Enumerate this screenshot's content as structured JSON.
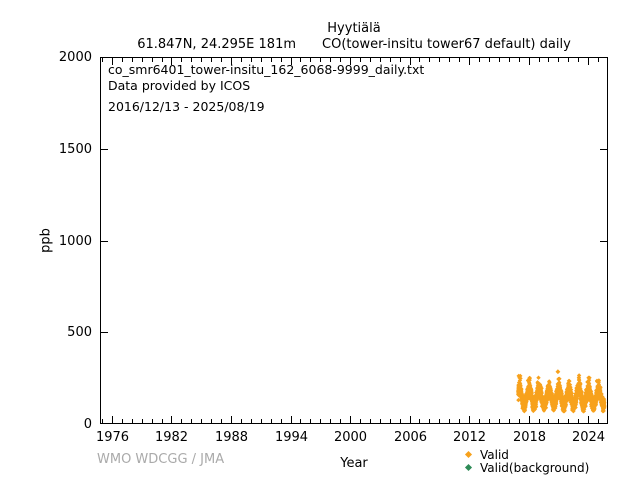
{
  "title": {
    "station": "Hyytiälä",
    "coordinates": "61.847N, 24.295E 181m",
    "parameter": "CO(tower-insitu tower67 default) daily"
  },
  "plot_annotation": {
    "file_name": "co_smr6401_tower-insitu_162_6068-9999_daily.txt",
    "provider": "Data provided by ICOS",
    "date_range": "2016/12/13 - 2025/08/19"
  },
  "watermark": "WMO WDCGG / JMA",
  "legend": {
    "items": [
      {
        "label": "Valid",
        "color": "#F7A11C",
        "marker": "diamond"
      },
      {
        "label": "Valid(background)",
        "color": "#2E8B57",
        "marker": "diamond"
      }
    ]
  },
  "chart_data": {
    "type": "scatter",
    "title": "Hyytiälä",
    "subtitle": "61.847N, 24.295E 181m    CO(tower-insitu tower67 default) daily",
    "xlabel": "Year",
    "ylabel": "ppb",
    "xlim": [
      1974.8,
      2026.0
    ],
    "ylim": [
      0,
      2000
    ],
    "xticks": [
      1976,
      1982,
      1988,
      1994,
      2000,
      2006,
      2012,
      2018,
      2024
    ],
    "xtick_minor_interval_years": 1,
    "yticks": [
      0,
      500,
      1000,
      1500,
      2000
    ],
    "grid": false,
    "legend_position": "below-plot-bottom-right",
    "series": [
      {
        "name": "Valid",
        "marker": "diamond",
        "color": "#F7A11C",
        "cadence": "daily",
        "start_decimal_year": 2016.953,
        "end_decimal_year": 2025.633,
        "value_range_ppb": [
          70,
          285
        ],
        "typical_band_ppb": [
          90,
          200
        ],
        "monthly_climatology_ppb": [
          180,
          190,
          180,
          160,
          135,
          112,
          100,
          102,
          112,
          132,
          155,
          172
        ],
        "noise_sd_ppb": 15,
        "winter_peaks_ppb": [
          {
            "winter": 2017,
            "peak": 262
          },
          {
            "winter": 2018,
            "peak": 250
          },
          {
            "winter": 2019,
            "peak": 258
          },
          {
            "winter": 2020,
            "peak": 240
          },
          {
            "winter": 2021,
            "peak": 252
          },
          {
            "winter": 2022,
            "peak": 235
          },
          {
            "winter": 2023,
            "peak": 266
          },
          {
            "winter": 2024,
            "peak": 252
          },
          {
            "winter": 2025,
            "peak": 244
          }
        ],
        "outliers": [
          {
            "decimal_year": 2020.95,
            "value_ppb": 285
          }
        ]
      },
      {
        "name": "Valid(background)",
        "marker": "diamond",
        "color": "#2E8B57",
        "points": []
      }
    ]
  }
}
